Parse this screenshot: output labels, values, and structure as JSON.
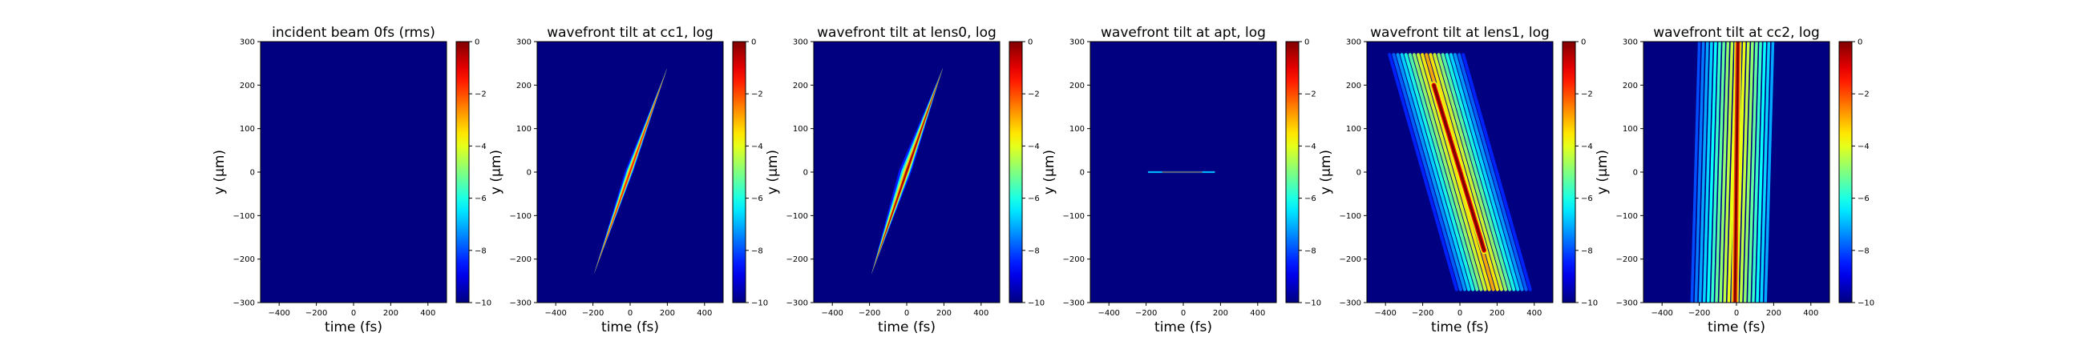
{
  "chart_data": [
    {
      "type": "heatmap",
      "title": "incident beam 0fs (rms)",
      "xlabel": "time (fs)",
      "ylabel": "y (μm)",
      "xlim": [
        -500,
        500
      ],
      "ylim": [
        -300,
        300
      ],
      "xticks": [
        -400,
        -200,
        0,
        200,
        400
      ],
      "yticks": [
        -300,
        -200,
        -100,
        0,
        100,
        200,
        300
      ],
      "colorbar": {
        "range": [
          -10,
          0
        ],
        "ticks": [
          0,
          -2,
          -4,
          -6,
          -8,
          -10
        ],
        "colormap": "jet"
      },
      "pattern": {
        "kind": "empty"
      }
    },
    {
      "type": "heatmap",
      "title": "wavefront tilt at cc1, log",
      "xlabel": "time (fs)",
      "ylabel": "y (μm)",
      "xlim": [
        -500,
        500
      ],
      "ylim": [
        -300,
        300
      ],
      "xticks": [
        -400,
        -200,
        0,
        200,
        400
      ],
      "yticks": [
        -300,
        -200,
        -100,
        0,
        100,
        200,
        300
      ],
      "colorbar": {
        "range": [
          -10,
          0
        ],
        "ticks": [
          0,
          -2,
          -4,
          -6,
          -8,
          -10
        ],
        "colormap": "jet"
      },
      "pattern": {
        "kind": "tilt",
        "t0": -195,
        "y0": -235,
        "t1": 200,
        "y1": 240,
        "width_fs": 30,
        "peak": -1.5
      }
    },
    {
      "type": "heatmap",
      "title": "wavefront tilt at lens0, log",
      "xlabel": "time (fs)",
      "ylabel": "y (μm)",
      "xlim": [
        -500,
        500
      ],
      "ylim": [
        -300,
        300
      ],
      "xticks": [
        -400,
        -200,
        0,
        200,
        400
      ],
      "yticks": [
        -300,
        -200,
        -100,
        0,
        100,
        200,
        300
      ],
      "colorbar": {
        "range": [
          -10,
          0
        ],
        "ticks": [
          0,
          -2,
          -4,
          -6,
          -8,
          -10
        ],
        "colormap": "jet"
      },
      "pattern": {
        "kind": "tilt",
        "t0": -190,
        "y0": -235,
        "t1": 195,
        "y1": 240,
        "width_fs": 45,
        "peak": -0.5
      }
    },
    {
      "type": "heatmap",
      "title": "wavefront tilt at apt, log",
      "xlabel": "time (fs)",
      "ylabel": "y (μm)",
      "xlim": [
        -500,
        500
      ],
      "ylim": [
        -300,
        300
      ],
      "xticks": [
        -400,
        -200,
        0,
        200,
        400
      ],
      "yticks": [
        -300,
        -200,
        -100,
        0,
        100,
        200,
        300
      ],
      "colorbar": {
        "range": [
          -10,
          0
        ],
        "ticks": [
          0,
          -2,
          -4,
          -6,
          -8,
          -10
        ],
        "colormap": "jet"
      },
      "pattern": {
        "kind": "line",
        "t0": -190,
        "t1": 170,
        "y": 0,
        "peak": -0.5
      }
    },
    {
      "type": "heatmap",
      "title": "wavefront tilt at lens1, log",
      "xlabel": "time (fs)",
      "ylabel": "y (μm)",
      "xlim": [
        -500,
        500
      ],
      "ylim": [
        -300,
        300
      ],
      "xticks": [
        -400,
        -200,
        0,
        200,
        400
      ],
      "yticks": [
        -300,
        -200,
        -100,
        0,
        100,
        200,
        300
      ],
      "colorbar": {
        "range": [
          -10,
          0
        ],
        "ticks": [
          0,
          -2,
          -4,
          -6,
          -8,
          -10
        ],
        "colormap": "jet"
      },
      "pattern": {
        "kind": "fringes",
        "t0": -180,
        "y0": 240,
        "t1": 180,
        "y1": -240,
        "fringe_t": [
          -100,
          100
        ],
        "fringe_y": [
          -280,
          280
        ],
        "fringe_period": 22,
        "peak": 0
      }
    },
    {
      "type": "heatmap",
      "title": "wavefront tilt at cc2, log",
      "xlabel": "time (fs)",
      "ylabel": "y (μm)",
      "xlim": [
        -500,
        500
      ],
      "ylim": [
        -300,
        300
      ],
      "xticks": [
        -400,
        -200,
        0,
        200,
        400
      ],
      "yticks": [
        -300,
        -200,
        -100,
        0,
        100,
        200,
        300
      ],
      "colorbar": {
        "range": [
          -10,
          0
        ],
        "ticks": [
          0,
          -2,
          -4,
          -6,
          -8,
          -10
        ],
        "colormap": "jet"
      },
      "pattern": {
        "kind": "vertical",
        "t_center": 0,
        "fringe_t": [
          -230,
          190
        ],
        "fringe_period": 22,
        "peak": 0
      }
    }
  ]
}
